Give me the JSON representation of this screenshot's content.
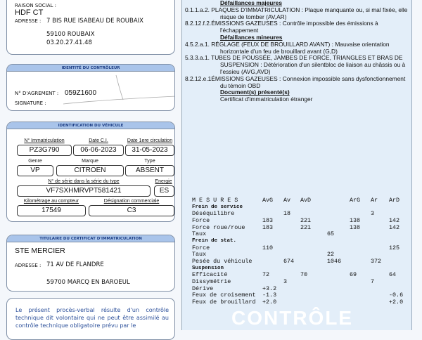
{
  "centre": {
    "raison_label": "RAISON SOCIAL :",
    "name": "HDF CT",
    "adresse_label": "ADRESSE :",
    "address1": "7 BIS RUE ISABEAU DE ROUBAIX",
    "address2": "59100 ROUBAIX",
    "phone": "03.20.27.41.48"
  },
  "controleur": {
    "header": "IDENTITÉ DU CONTRÔLEUR",
    "agrement_label": "N° D'AGREMENT :",
    "agrement": "059Z1600",
    "signature_label": "SIGNATURE :"
  },
  "vehicule": {
    "header": "IDENTIFICATION DU VÉHICULE",
    "fields": [
      {
        "label": "N° Immatriculation",
        "value": "PZ3G790"
      },
      {
        "label": "Date C.I.",
        "value": "06-06-2023"
      },
      {
        "label": "Date 1ere circulation",
        "value": "31-05-2023"
      },
      {
        "label": "Genre",
        "value": "VP"
      },
      {
        "label": "Marque",
        "value": "CITROEN"
      },
      {
        "label": "Type",
        "value": "ABSENT"
      },
      {
        "label": "N° de série dans la série du type",
        "value": "VF7SXHMRVPT581421"
      },
      {
        "label": "Energie",
        "value": "ES"
      },
      {
        "label": "Kilométrage au compteur",
        "value": "17549"
      },
      {
        "label": "Désignation commerciale",
        "value": "C3"
      }
    ]
  },
  "titulaire": {
    "header": "TITULAIRE DU CERTIFICAT D'IMMATRICULATION",
    "name": "STE MERCIER",
    "adresse_label": "ADRESSE :",
    "address1": "71 AV DE FLANDRE",
    "address2": "59700 MARCQ EN BAROEUL"
  },
  "notice": "Le présent procès-verbal résulte d'un contrôle technique dit volontaire qui ne peut être assimilé au contrôle technique obligatoire prévu par le",
  "watermark": "CONTRÔLE",
  "defaillances": {
    "majeures_title": "Défaillances majeures",
    "majeures": [
      "0.1.1.a.2. PLAQUES D'IMMATRICULATION : Plaque manquante ou, si mal fixée, elle risque de tomber (AV,AR)",
      "8.2.12.f.2.ÉMISSIONS GAZEUSES : Contrôle impossible des émissions à l'échappement"
    ],
    "mineures_title": "Défaillances mineures",
    "mineures": [
      "4.5.2.a.1. RÉGLAGE (FEUX DE BROUILLARD AVANT) : Mauvaise orientation horizontale d'un feu de brouillard avant (G,D)",
      "5.3.3.a.1. TUBES DE POUSSÉE, JAMBES DE FORCE, TRIANGLES ET BRAS DE SUSPENSION : Détérioration d'un silentbloc de liaison au châssis ou à l'essieu (AVG,AVD)",
      "8.2.12.e.1ÉMISSIONS GAZEUSES : Connexion impossible sans dysfonctionnement du témoin OBD"
    ],
    "documents_title": "Document(s) présenté(s)",
    "document": "Certificat d'immatriculation étranger"
  },
  "mesures": {
    "header": [
      "M E S U R E S",
      "AvG",
      "Av",
      "AvD",
      "",
      "ArG",
      "Ar",
      "ArD"
    ],
    "rows": [
      [
        "Frein de service",
        "",
        "",
        "",
        "",
        "",
        "",
        ""
      ],
      [
        "Déséquilibre",
        "",
        "18",
        "",
        "",
        "",
        "3",
        ""
      ],
      [
        "Force",
        "183",
        "",
        "221",
        "",
        "138",
        "",
        "142"
      ],
      [
        "Force roue/roue",
        "183",
        "",
        "221",
        "",
        "138",
        "",
        "142"
      ],
      [
        "Taux",
        "",
        "",
        "",
        "65",
        "",
        "",
        ""
      ],
      [
        "Frein de stat.",
        "",
        "",
        "",
        "",
        "",
        "",
        ""
      ],
      [
        "Force",
        "110",
        "",
        "",
        "",
        "",
        "",
        "125"
      ],
      [
        "Taux",
        "",
        "",
        "",
        "22",
        "",
        "",
        ""
      ],
      [
        "Pesée du véhicule",
        "",
        "674",
        "",
        "1046",
        "",
        "372",
        ""
      ],
      [
        "Suspension",
        "",
        "",
        "",
        "",
        "",
        "",
        ""
      ],
      [
        "Efficacité",
        "72",
        "",
        "70",
        "",
        "69",
        "",
        "64"
      ],
      [
        "Dissymétrie",
        "",
        "3",
        "",
        "",
        "",
        "7",
        ""
      ],
      [
        "Dérive",
        "+3.2",
        "",
        "",
        "",
        "",
        "",
        ""
      ],
      [
        "Feux de croisement",
        "-1.3",
        "",
        "",
        "",
        "",
        "",
        "-0.6"
      ],
      [
        "Feux de brouillard",
        "+2.0",
        "",
        "",
        "",
        "",
        "",
        "+2.0"
      ]
    ]
  }
}
